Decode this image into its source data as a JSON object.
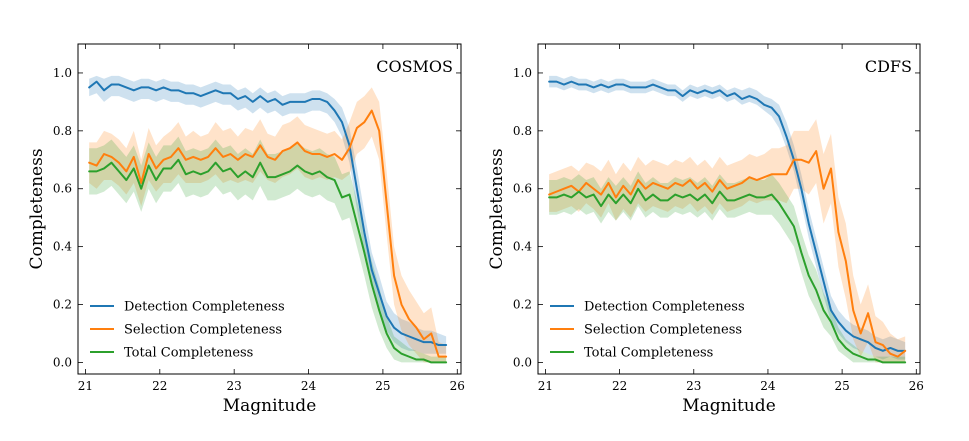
{
  "chart_data": [
    {
      "type": "line",
      "title": "COSMOS",
      "xlabel": "Magnitude",
      "ylabel": "Completeness",
      "xlim": [
        20.9,
        26.05
      ],
      "ylim": [
        -0.04,
        1.1
      ],
      "xticks": [
        21,
        22,
        23,
        24,
        25,
        26
      ],
      "yticks": [
        0.0,
        0.2,
        0.4,
        0.6,
        0.8,
        1.0
      ],
      "xtick_labels": [
        "21",
        "22",
        "23",
        "24",
        "25",
        "26"
      ],
      "ytick_labels": [
        "0.0",
        "0.2",
        "0.4",
        "0.6",
        "0.8",
        "1.0"
      ],
      "legend_position": "lower-left",
      "x": [
        21.05,
        21.15,
        21.25,
        21.35,
        21.45,
        21.55,
        21.65,
        21.75,
        21.85,
        21.95,
        22.05,
        22.15,
        22.25,
        22.35,
        22.45,
        22.55,
        22.65,
        22.75,
        22.85,
        22.95,
        23.05,
        23.15,
        23.25,
        23.35,
        23.45,
        23.55,
        23.65,
        23.75,
        23.85,
        23.95,
        24.05,
        24.15,
        24.25,
        24.35,
        24.45,
        24.55,
        24.65,
        24.75,
        24.85,
        24.95,
        25.05,
        25.15,
        25.25,
        25.35,
        25.45,
        25.55,
        25.65,
        25.75,
        25.85
      ],
      "series": [
        {
          "name": "Detection Completeness",
          "color": "#1f77b4",
          "values": [
            0.95,
            0.97,
            0.94,
            0.96,
            0.96,
            0.95,
            0.94,
            0.95,
            0.95,
            0.94,
            0.95,
            0.94,
            0.94,
            0.93,
            0.93,
            0.92,
            0.93,
            0.94,
            0.93,
            0.93,
            0.91,
            0.92,
            0.9,
            0.92,
            0.9,
            0.91,
            0.89,
            0.9,
            0.9,
            0.9,
            0.91,
            0.91,
            0.9,
            0.87,
            0.83,
            0.75,
            0.6,
            0.45,
            0.32,
            0.24,
            0.16,
            0.12,
            0.1,
            0.09,
            0.08,
            0.07,
            0.07,
            0.06,
            0.06
          ],
          "lower": [
            0.92,
            0.93,
            0.9,
            0.92,
            0.92,
            0.91,
            0.9,
            0.91,
            0.91,
            0.9,
            0.91,
            0.9,
            0.9,
            0.89,
            0.89,
            0.88,
            0.89,
            0.9,
            0.89,
            0.89,
            0.87,
            0.88,
            0.86,
            0.88,
            0.86,
            0.87,
            0.85,
            0.86,
            0.86,
            0.86,
            0.87,
            0.87,
            0.86,
            0.83,
            0.78,
            0.69,
            0.53,
            0.38,
            0.26,
            0.18,
            0.11,
            0.07,
            0.05,
            0.04,
            0.04,
            0.03,
            0.03,
            0.03,
            0.03
          ],
          "upper": [
            0.98,
            0.99,
            0.98,
            0.99,
            0.99,
            0.98,
            0.97,
            0.98,
            0.98,
            0.97,
            0.98,
            0.97,
            0.97,
            0.96,
            0.96,
            0.95,
            0.96,
            0.97,
            0.96,
            0.96,
            0.94,
            0.95,
            0.93,
            0.95,
            0.93,
            0.94,
            0.92,
            0.93,
            0.93,
            0.93,
            0.94,
            0.94,
            0.93,
            0.91,
            0.88,
            0.81,
            0.67,
            0.52,
            0.38,
            0.3,
            0.21,
            0.17,
            0.15,
            0.14,
            0.12,
            0.11,
            0.11,
            0.1,
            0.09
          ]
        },
        {
          "name": "Selection Completeness",
          "color": "#ff7f0e",
          "values": [
            0.69,
            0.68,
            0.72,
            0.71,
            0.69,
            0.66,
            0.71,
            0.62,
            0.72,
            0.67,
            0.7,
            0.71,
            0.74,
            0.7,
            0.71,
            0.7,
            0.71,
            0.74,
            0.71,
            0.72,
            0.7,
            0.72,
            0.71,
            0.75,
            0.71,
            0.7,
            0.73,
            0.74,
            0.76,
            0.73,
            0.72,
            0.72,
            0.71,
            0.72,
            0.7,
            0.74,
            0.81,
            0.83,
            0.87,
            0.8,
            0.55,
            0.3,
            0.2,
            0.15,
            0.12,
            0.08,
            0.1,
            0.02,
            0.02
          ],
          "lower": [
            0.62,
            0.6,
            0.63,
            0.63,
            0.61,
            0.58,
            0.62,
            0.54,
            0.63,
            0.59,
            0.62,
            0.62,
            0.65,
            0.62,
            0.62,
            0.62,
            0.63,
            0.65,
            0.62,
            0.63,
            0.62,
            0.63,
            0.62,
            0.66,
            0.63,
            0.62,
            0.64,
            0.65,
            0.67,
            0.64,
            0.63,
            0.64,
            0.63,
            0.64,
            0.63,
            0.65,
            0.72,
            0.74,
            0.78,
            0.7,
            0.44,
            0.2,
            0.11,
            0.06,
            0.03,
            0.0,
            0.0,
            0.0,
            0.0
          ],
          "upper": [
            0.76,
            0.76,
            0.8,
            0.79,
            0.77,
            0.74,
            0.8,
            0.7,
            0.81,
            0.75,
            0.78,
            0.8,
            0.83,
            0.78,
            0.8,
            0.78,
            0.79,
            0.83,
            0.8,
            0.81,
            0.78,
            0.81,
            0.8,
            0.84,
            0.79,
            0.78,
            0.82,
            0.83,
            0.85,
            0.82,
            0.81,
            0.8,
            0.79,
            0.8,
            0.77,
            0.83,
            0.9,
            0.92,
            0.95,
            0.9,
            0.66,
            0.4,
            0.3,
            0.25,
            0.21,
            0.17,
            0.19,
            0.07,
            0.06
          ]
        },
        {
          "name": "Total Completeness",
          "color": "#2ca02c",
          "values": [
            0.66,
            0.66,
            0.67,
            0.69,
            0.66,
            0.63,
            0.67,
            0.6,
            0.68,
            0.63,
            0.67,
            0.67,
            0.7,
            0.65,
            0.66,
            0.65,
            0.66,
            0.69,
            0.66,
            0.67,
            0.64,
            0.66,
            0.64,
            0.69,
            0.64,
            0.64,
            0.65,
            0.66,
            0.68,
            0.66,
            0.65,
            0.66,
            0.64,
            0.63,
            0.57,
            0.58,
            0.48,
            0.38,
            0.27,
            0.18,
            0.1,
            0.05,
            0.03,
            0.02,
            0.01,
            0.01,
            0.0,
            0.0,
            0.0
          ],
          "lower": [
            0.58,
            0.58,
            0.59,
            0.61,
            0.58,
            0.55,
            0.59,
            0.52,
            0.6,
            0.55,
            0.59,
            0.59,
            0.62,
            0.57,
            0.58,
            0.57,
            0.58,
            0.61,
            0.58,
            0.59,
            0.56,
            0.58,
            0.56,
            0.61,
            0.56,
            0.56,
            0.57,
            0.58,
            0.6,
            0.58,
            0.57,
            0.58,
            0.56,
            0.55,
            0.49,
            0.5,
            0.4,
            0.3,
            0.19,
            0.11,
            0.05,
            0.01,
            0.0,
            0.0,
            0.0,
            0.0,
            0.0,
            0.0,
            0.0
          ],
          "upper": [
            0.74,
            0.74,
            0.75,
            0.77,
            0.74,
            0.71,
            0.75,
            0.68,
            0.76,
            0.71,
            0.75,
            0.75,
            0.78,
            0.73,
            0.74,
            0.73,
            0.74,
            0.77,
            0.74,
            0.75,
            0.72,
            0.74,
            0.72,
            0.77,
            0.72,
            0.72,
            0.73,
            0.74,
            0.76,
            0.74,
            0.73,
            0.74,
            0.72,
            0.71,
            0.65,
            0.66,
            0.56,
            0.46,
            0.35,
            0.26,
            0.16,
            0.09,
            0.07,
            0.05,
            0.04,
            0.03,
            0.02,
            0.02,
            0.02
          ]
        }
      ]
    },
    {
      "type": "line",
      "title": "CDFS",
      "xlabel": "Magnitude",
      "ylabel": "Completeness",
      "xlim": [
        20.9,
        26.05
      ],
      "ylim": [
        -0.04,
        1.1
      ],
      "xticks": [
        21,
        22,
        23,
        24,
        25,
        26
      ],
      "yticks": [
        0.0,
        0.2,
        0.4,
        0.6,
        0.8,
        1.0
      ],
      "xtick_labels": [
        "21",
        "22",
        "23",
        "24",
        "25",
        "26"
      ],
      "ytick_labels": [
        "0.0",
        "0.2",
        "0.4",
        "0.6",
        "0.8",
        "1.0"
      ],
      "legend_position": "lower-left",
      "x": [
        21.05,
        21.15,
        21.25,
        21.35,
        21.45,
        21.55,
        21.65,
        21.75,
        21.85,
        21.95,
        22.05,
        22.15,
        22.25,
        22.35,
        22.45,
        22.55,
        22.65,
        22.75,
        22.85,
        22.95,
        23.05,
        23.15,
        23.25,
        23.35,
        23.45,
        23.55,
        23.65,
        23.75,
        23.85,
        23.95,
        24.05,
        24.15,
        24.25,
        24.35,
        24.45,
        24.55,
        24.65,
        24.75,
        24.85,
        24.95,
        25.05,
        25.15,
        25.25,
        25.35,
        25.45,
        25.55,
        25.65,
        25.75,
        25.85
      ],
      "series": [
        {
          "name": "Detection Completeness",
          "color": "#1f77b4",
          "values": [
            0.97,
            0.97,
            0.96,
            0.97,
            0.96,
            0.96,
            0.95,
            0.96,
            0.95,
            0.96,
            0.96,
            0.95,
            0.95,
            0.95,
            0.96,
            0.95,
            0.94,
            0.94,
            0.92,
            0.94,
            0.93,
            0.94,
            0.93,
            0.94,
            0.92,
            0.93,
            0.91,
            0.92,
            0.91,
            0.89,
            0.88,
            0.85,
            0.78,
            0.7,
            0.6,
            0.48,
            0.38,
            0.28,
            0.18,
            0.14,
            0.11,
            0.09,
            0.08,
            0.07,
            0.05,
            0.04,
            0.05,
            0.04,
            0.04
          ],
          "lower": [
            0.95,
            0.95,
            0.94,
            0.95,
            0.94,
            0.94,
            0.93,
            0.94,
            0.93,
            0.94,
            0.94,
            0.93,
            0.93,
            0.93,
            0.94,
            0.93,
            0.92,
            0.92,
            0.9,
            0.92,
            0.91,
            0.92,
            0.91,
            0.92,
            0.9,
            0.91,
            0.89,
            0.9,
            0.89,
            0.87,
            0.85,
            0.81,
            0.74,
            0.66,
            0.55,
            0.43,
            0.33,
            0.23,
            0.14,
            0.1,
            0.07,
            0.05,
            0.04,
            0.03,
            0.02,
            0.01,
            0.02,
            0.01,
            0.01
          ],
          "upper": [
            0.99,
            0.99,
            0.98,
            0.99,
            0.98,
            0.98,
            0.97,
            0.98,
            0.97,
            0.98,
            0.98,
            0.97,
            0.97,
            0.97,
            0.98,
            0.97,
            0.96,
            0.96,
            0.94,
            0.96,
            0.95,
            0.96,
            0.95,
            0.96,
            0.94,
            0.95,
            0.94,
            0.95,
            0.94,
            0.92,
            0.91,
            0.89,
            0.83,
            0.75,
            0.65,
            0.53,
            0.43,
            0.33,
            0.23,
            0.18,
            0.15,
            0.13,
            0.12,
            0.11,
            0.09,
            0.08,
            0.09,
            0.08,
            0.07
          ]
        },
        {
          "name": "Selection Completeness",
          "color": "#ff7f0e",
          "values": [
            0.58,
            0.59,
            0.6,
            0.61,
            0.59,
            0.62,
            0.6,
            0.58,
            0.62,
            0.57,
            0.61,
            0.58,
            0.63,
            0.6,
            0.62,
            0.61,
            0.6,
            0.62,
            0.61,
            0.63,
            0.6,
            0.62,
            0.59,
            0.63,
            0.6,
            0.61,
            0.62,
            0.64,
            0.63,
            0.64,
            0.65,
            0.65,
            0.65,
            0.7,
            0.7,
            0.69,
            0.73,
            0.6,
            0.67,
            0.45,
            0.35,
            0.18,
            0.1,
            0.17,
            0.07,
            0.06,
            0.03,
            0.02,
            0.04
          ],
          "lower": [
            0.52,
            0.52,
            0.53,
            0.54,
            0.52,
            0.55,
            0.53,
            0.5,
            0.55,
            0.49,
            0.53,
            0.5,
            0.55,
            0.52,
            0.54,
            0.53,
            0.52,
            0.54,
            0.53,
            0.55,
            0.52,
            0.54,
            0.51,
            0.55,
            0.52,
            0.53,
            0.54,
            0.56,
            0.55,
            0.56,
            0.56,
            0.56,
            0.55,
            0.6,
            0.6,
            0.58,
            0.62,
            0.48,
            0.55,
            0.33,
            0.22,
            0.08,
            0.02,
            0.07,
            0.0,
            0.0,
            0.0,
            0.0,
            0.0
          ],
          "upper": [
            0.65,
            0.66,
            0.67,
            0.68,
            0.66,
            0.69,
            0.68,
            0.66,
            0.7,
            0.65,
            0.69,
            0.66,
            0.71,
            0.68,
            0.7,
            0.69,
            0.68,
            0.7,
            0.69,
            0.71,
            0.68,
            0.7,
            0.67,
            0.71,
            0.68,
            0.69,
            0.7,
            0.72,
            0.71,
            0.72,
            0.74,
            0.74,
            0.75,
            0.8,
            0.8,
            0.8,
            0.84,
            0.72,
            0.79,
            0.57,
            0.48,
            0.3,
            0.2,
            0.27,
            0.16,
            0.14,
            0.1,
            0.08,
            0.09
          ]
        },
        {
          "name": "Total Completeness",
          "color": "#2ca02c",
          "values": [
            0.57,
            0.57,
            0.58,
            0.57,
            0.59,
            0.57,
            0.58,
            0.54,
            0.58,
            0.55,
            0.58,
            0.55,
            0.6,
            0.56,
            0.58,
            0.56,
            0.56,
            0.58,
            0.57,
            0.58,
            0.56,
            0.58,
            0.55,
            0.59,
            0.56,
            0.56,
            0.57,
            0.58,
            0.57,
            0.57,
            0.58,
            0.55,
            0.51,
            0.47,
            0.38,
            0.3,
            0.25,
            0.18,
            0.14,
            0.08,
            0.05,
            0.03,
            0.02,
            0.01,
            0.01,
            0.0,
            0.0,
            0.0,
            0.0
          ],
          "lower": [
            0.51,
            0.51,
            0.52,
            0.51,
            0.53,
            0.51,
            0.52,
            0.48,
            0.52,
            0.49,
            0.52,
            0.49,
            0.54,
            0.5,
            0.52,
            0.5,
            0.5,
            0.52,
            0.51,
            0.52,
            0.5,
            0.52,
            0.49,
            0.53,
            0.5,
            0.5,
            0.51,
            0.52,
            0.51,
            0.51,
            0.51,
            0.48,
            0.44,
            0.4,
            0.31,
            0.23,
            0.18,
            0.12,
            0.09,
            0.04,
            0.02,
            0.0,
            0.0,
            0.0,
            0.0,
            0.0,
            0.0,
            0.0,
            0.0
          ],
          "upper": [
            0.63,
            0.63,
            0.64,
            0.63,
            0.65,
            0.63,
            0.64,
            0.6,
            0.64,
            0.61,
            0.64,
            0.61,
            0.66,
            0.62,
            0.64,
            0.62,
            0.62,
            0.64,
            0.63,
            0.64,
            0.62,
            0.64,
            0.61,
            0.65,
            0.62,
            0.62,
            0.63,
            0.64,
            0.63,
            0.63,
            0.65,
            0.62,
            0.58,
            0.54,
            0.45,
            0.37,
            0.32,
            0.24,
            0.19,
            0.12,
            0.08,
            0.06,
            0.04,
            0.03,
            0.02,
            0.02,
            0.02,
            0.02,
            0.02
          ]
        }
      ]
    }
  ]
}
